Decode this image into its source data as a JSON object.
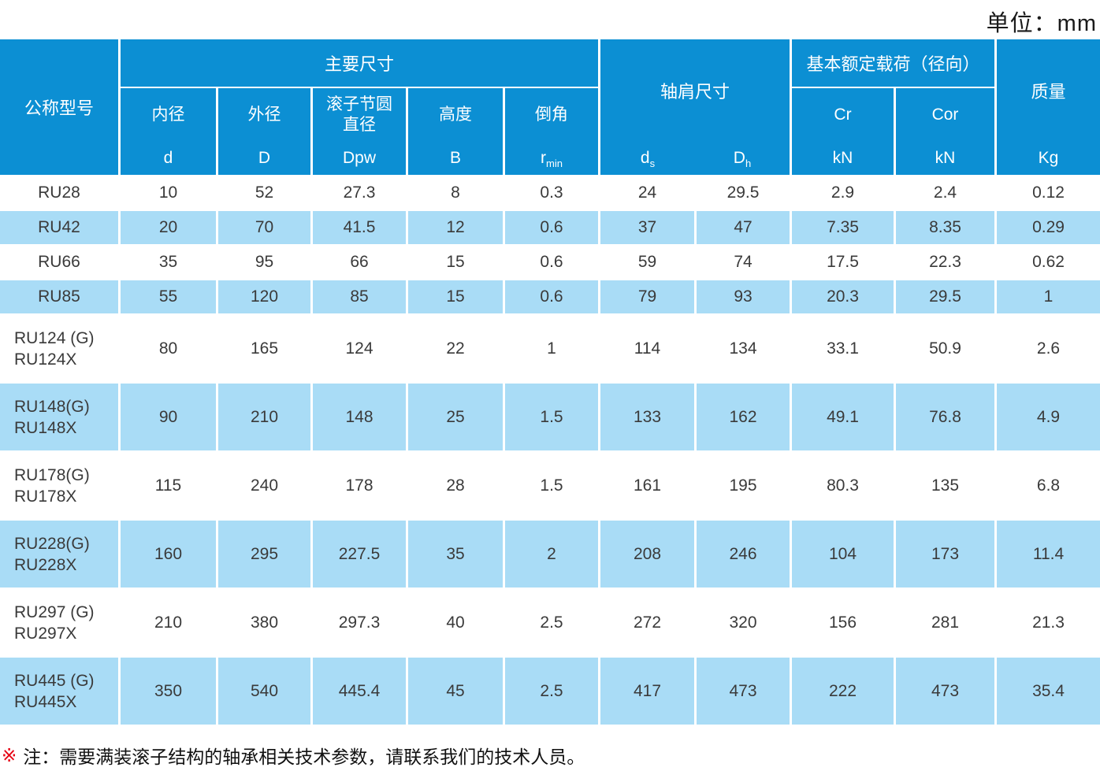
{
  "page": {
    "unit_label": "单位：mm",
    "note_marker": "※",
    "note_text": "注：需要满装滚子结构的轴承相关技术参数，请联系我们的技术人员。"
  },
  "colors": {
    "header_blue": "#0c8fd3",
    "stripe_blue": "#a9dcf6",
    "note_red": "#e60012"
  },
  "table": {
    "header": {
      "model": "公称型号",
      "main": {
        "title": "主要尺寸",
        "cols": [
          {
            "label": "内径",
            "symbol": "d"
          },
          {
            "label": "外径",
            "symbol": "D"
          },
          {
            "label": "滚子节圆直径",
            "symbol": "Dpw"
          },
          {
            "label": "高度",
            "symbol": "B"
          },
          {
            "label": "倒角",
            "symbol": "r",
            "sub": "min"
          }
        ]
      },
      "shoulder": {
        "title": "轴肩尺寸",
        "cols": [
          {
            "symbol": "d",
            "sub": "s"
          },
          {
            "symbol": "D",
            "sub": "h"
          }
        ]
      },
      "load": {
        "title": "基本额定载荷（径向）",
        "cols": [
          {
            "label": "Cr",
            "symbol": "kN"
          },
          {
            "label": "Cor",
            "symbol": "kN"
          }
        ]
      },
      "mass": {
        "title": "质量",
        "symbol": "Kg"
      }
    },
    "rows": [
      {
        "models": [
          "RU28"
        ],
        "values": [
          "10",
          "52",
          "27.3",
          "8",
          "0.3",
          "24",
          "29.5",
          "2.9",
          "2.4",
          "0.12"
        ]
      },
      {
        "models": [
          "RU42"
        ],
        "values": [
          "20",
          "70",
          "41.5",
          "12",
          "0.6",
          "37",
          "47",
          "7.35",
          "8.35",
          "0.29"
        ]
      },
      {
        "models": [
          "RU66"
        ],
        "values": [
          "35",
          "95",
          "66",
          "15",
          "0.6",
          "59",
          "74",
          "17.5",
          "22.3",
          "0.62"
        ]
      },
      {
        "models": [
          "RU85"
        ],
        "values": [
          "55",
          "120",
          "85",
          "15",
          "0.6",
          "79",
          "93",
          "20.3",
          "29.5",
          "1"
        ]
      },
      {
        "models": [
          "RU124 (G)",
          "RU124X"
        ],
        "values": [
          "80",
          "165",
          "124",
          "22",
          "1",
          "114",
          "134",
          "33.1",
          "50.9",
          "2.6"
        ]
      },
      {
        "models": [
          "RU148(G)",
          "RU148X"
        ],
        "values": [
          "90",
          "210",
          "148",
          "25",
          "1.5",
          "133",
          "162",
          "49.1",
          "76.8",
          "4.9"
        ]
      },
      {
        "models": [
          "RU178(G)",
          "RU178X"
        ],
        "values": [
          "115",
          "240",
          "178",
          "28",
          "1.5",
          "161",
          "195",
          "80.3",
          "135",
          "6.8"
        ]
      },
      {
        "models": [
          "RU228(G)",
          "RU228X"
        ],
        "values": [
          "160",
          "295",
          "227.5",
          "35",
          "2",
          "208",
          "246",
          "104",
          "173",
          "11.4"
        ]
      },
      {
        "models": [
          "RU297 (G)",
          "RU297X"
        ],
        "values": [
          "210",
          "380",
          "297.3",
          "40",
          "2.5",
          "272",
          "320",
          "156",
          "281",
          "21.3"
        ]
      },
      {
        "models": [
          "RU445 (G)",
          "RU445X"
        ],
        "values": [
          "350",
          "540",
          "445.4",
          "45",
          "2.5",
          "417",
          "473",
          "222",
          "473",
          "35.4"
        ]
      }
    ]
  }
}
